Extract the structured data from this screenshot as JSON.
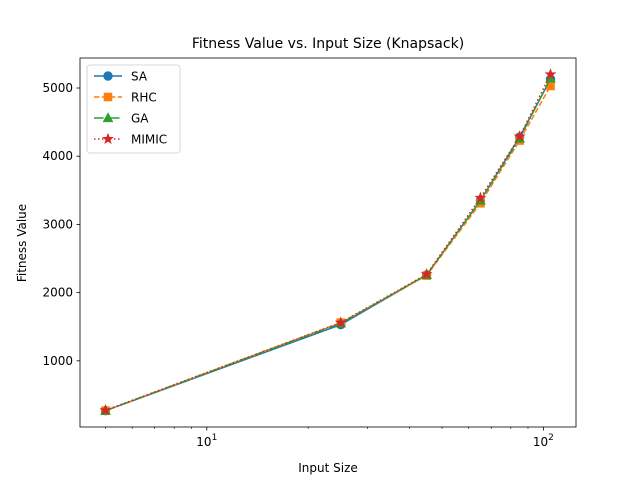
{
  "chart_data": {
    "type": "line",
    "title": "Fitness Value vs. Input Size (Knapsack)",
    "xlabel": "Input Size",
    "ylabel": "Fitness Value",
    "xscale": "log",
    "xlim": [
      4.2,
      125
    ],
    "ylim": [
      30,
      5440
    ],
    "x": [
      5,
      25,
      45,
      65,
      85,
      105
    ],
    "x_tick_labels": [
      "10^1",
      "10^2"
    ],
    "y_ticks": [
      1000,
      2000,
      3000,
      4000,
      5000
    ],
    "legend_position": "top-left",
    "series": [
      {
        "name": "SA",
        "color": "#1f77b4",
        "marker": "circle",
        "linestyle": "solid",
        "values": [
          270,
          1530,
          2260,
          3350,
          4280,
          5130
        ]
      },
      {
        "name": "RHC",
        "color": "#ff7f0e",
        "marker": "square",
        "linestyle": "dashed",
        "values": [
          270,
          1560,
          2250,
          3310,
          4230,
          5030
        ]
      },
      {
        "name": "GA",
        "color": "#2ca02c",
        "marker": "triangle",
        "linestyle": "dashdot",
        "values": [
          270,
          1550,
          2260,
          3350,
          4260,
          5140
        ]
      },
      {
        "name": "MIMIC",
        "color": "#d62728",
        "marker": "star",
        "linestyle": "dotted",
        "values": [
          275,
          1560,
          2270,
          3390,
          4290,
          5200
        ]
      }
    ]
  }
}
